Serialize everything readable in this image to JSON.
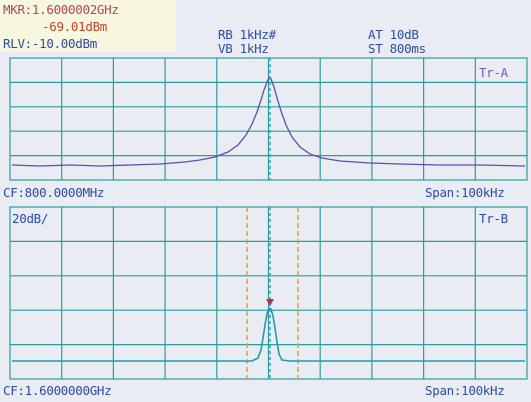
{
  "marker": {
    "freq": "MKR:1.6000002GHz",
    "level": "-69.01dBm"
  },
  "rlv": "RLV:-10.00dBm",
  "settings": {
    "rb": "RB 1kHz#",
    "vb": "VB 1kHz",
    "at": "AT 10dB",
    "st": "ST 800ms"
  },
  "trace_a": {
    "label": "Tr-A",
    "cf": "CF:800.0000MHz",
    "span": "Span:100kHz"
  },
  "trace_b": {
    "label": "Tr-B",
    "scale": "20dB/",
    "cf": "CF:1.6000000GHz",
    "span": "Span:100kHz"
  },
  "colors": {
    "grid": "#2e9c9a",
    "trace_a": "#5a4fb0",
    "trace_b": "#1e9bb0",
    "marker": "#b8304a",
    "center_line": "#2aa7c8",
    "window_lines": "#d9a53a"
  }
}
